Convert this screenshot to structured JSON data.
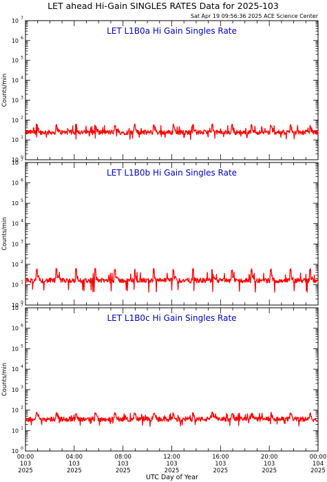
{
  "title": "LET ahead Hi-Gain SINGLES RATES Data for 2025-103",
  "timestamp": "Sat Apr 19 09:56:36 2025 ACE Science Center",
  "xlabel": "UTC Day of Year",
  "colors": {
    "series": "#ff0000",
    "panel_title": "#0000cc",
    "axis": "#000000"
  },
  "chart_data": [
    {
      "type": "line",
      "title": "LET L1B0a Hi Gain Singles Rate",
      "ylabel": "Counts/min",
      "yscale": "log",
      "ylim": [
        1,
        10000000
      ],
      "xlim": [
        0,
        24
      ],
      "series": [
        {
          "baseline": 24,
          "spike_period_h": 1.6,
          "spike_peak": 55,
          "noise_range": [
            13,
            45
          ]
        }
      ]
    },
    {
      "type": "line",
      "title": "LET L1B0b Hi Gain Singles Rate",
      "ylabel": "Counts/min",
      "yscale": "log",
      "ylim": [
        1,
        10000000
      ],
      "xlim": [
        0,
        24
      ],
      "series": [
        {
          "baseline": 16,
          "spike_period_h": 1.6,
          "spike_peak": 55,
          "noise_range": [
            5,
            35
          ]
        }
      ]
    },
    {
      "type": "line",
      "title": "LET L1B0c Hi Gain Singles Rate",
      "ylabel": "Counts/min",
      "yscale": "log",
      "ylim": [
        1,
        10000000
      ],
      "xlim": [
        0,
        24
      ],
      "series": [
        {
          "baseline": 36,
          "spike_period_h": 1.6,
          "spike_peak": 70,
          "noise_range": [
            20,
            60
          ]
        }
      ]
    }
  ],
  "y_tick_labels": [
    {
      "base": "10",
      "exp": "0"
    },
    {
      "base": "10",
      "exp": "1"
    },
    {
      "base": "10",
      "exp": "2"
    },
    {
      "base": "10",
      "exp": "3"
    },
    {
      "base": "10",
      "exp": "4"
    },
    {
      "base": "10",
      "exp": "5"
    },
    {
      "base": "10",
      "exp": "6"
    },
    {
      "base": "10",
      "exp": "7"
    }
  ],
  "x_tick_labels": [
    {
      "time": "00:00",
      "doy": "103",
      "year": "2025"
    },
    {
      "time": "04:00",
      "doy": "103",
      "year": "2025"
    },
    {
      "time": "08:00",
      "doy": "103",
      "year": "2025"
    },
    {
      "time": "12:00",
      "doy": "103",
      "year": "2025"
    },
    {
      "time": "16:00",
      "doy": "103",
      "year": "2025"
    },
    {
      "time": "20:00",
      "doy": "103",
      "year": "2025"
    },
    {
      "time": "00:00",
      "doy": "104",
      "year": "2025"
    }
  ]
}
